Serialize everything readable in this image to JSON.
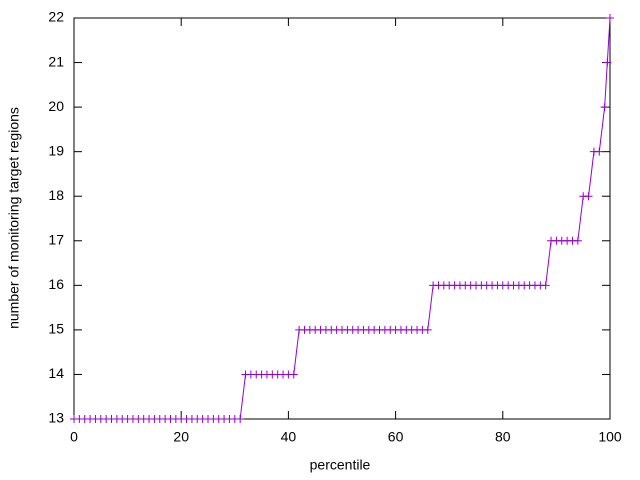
{
  "chart_data": {
    "type": "line",
    "xlabel": "percentile",
    "ylabel": "number of monitoring target regions",
    "x": [
      0,
      1,
      2,
      3,
      4,
      5,
      6,
      7,
      8,
      9,
      10,
      11,
      12,
      13,
      14,
      15,
      16,
      17,
      18,
      19,
      20,
      21,
      22,
      23,
      24,
      25,
      26,
      27,
      28,
      29,
      30,
      31,
      32,
      33,
      34,
      35,
      36,
      37,
      38,
      39,
      40,
      41,
      42,
      43,
      44,
      45,
      46,
      47,
      48,
      49,
      50,
      51,
      52,
      53,
      54,
      55,
      56,
      57,
      58,
      59,
      60,
      61,
      62,
      63,
      64,
      65,
      66,
      67,
      68,
      69,
      70,
      71,
      72,
      73,
      74,
      75,
      76,
      77,
      78,
      79,
      80,
      81,
      82,
      83,
      84,
      85,
      86,
      87,
      88,
      89,
      90,
      91,
      92,
      93,
      94,
      95,
      96,
      97,
      98,
      99,
      99.5,
      100
    ],
    "series": [
      {
        "color": "#9400d3",
        "values": [
          13,
          13,
          13,
          13,
          13,
          13,
          13,
          13,
          13,
          13,
          13,
          13,
          13,
          13,
          13,
          13,
          13,
          13,
          13,
          13,
          13,
          13,
          13,
          13,
          13,
          13,
          13,
          13,
          13,
          13,
          13,
          13,
          14,
          14,
          14,
          14,
          14,
          14,
          14,
          14,
          14,
          14,
          15,
          15,
          15,
          15,
          15,
          15,
          15,
          15,
          15,
          15,
          15,
          15,
          15,
          15,
          15,
          15,
          15,
          15,
          15,
          15,
          15,
          15,
          15,
          15,
          15,
          16,
          16,
          16,
          16,
          16,
          16,
          16,
          16,
          16,
          16,
          16,
          16,
          16,
          16,
          16,
          16,
          16,
          16,
          16,
          16,
          16,
          16,
          17,
          17,
          17,
          17,
          17,
          17,
          18,
          18,
          19,
          19,
          20,
          21,
          22
        ]
      }
    ],
    "xlim": [
      0,
      100
    ],
    "xticks": [
      0,
      20,
      40,
      60,
      80,
      100
    ],
    "ylim": [
      13,
      22
    ],
    "yticks": [
      13,
      14,
      15,
      16,
      17,
      18,
      19,
      20,
      21,
      22
    ]
  }
}
